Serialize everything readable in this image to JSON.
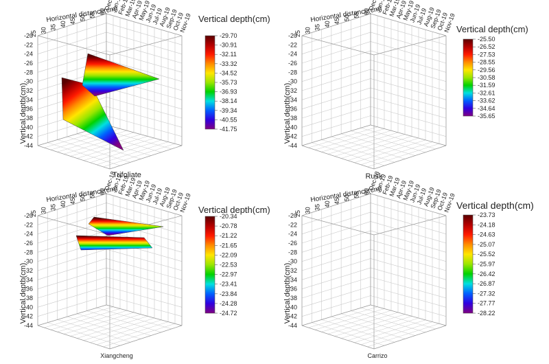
{
  "chart_data": [
    {
      "type": "surface3d",
      "name": "Trifoliate",
      "x_axis_title": "Horizontal distance(cm)",
      "x_ticks": [
        "25",
        "30",
        "35",
        "40",
        "45",
        "50",
        "55",
        "60"
      ],
      "time_ticks": [
        "Dec-18",
        "Jan-19",
        "Feb-19",
        "Mar-19",
        "Apr-19",
        "May-19",
        "Jun-19",
        "Jul-19",
        "Aug-19",
        "Sep-19",
        "Oct-19",
        "Nov-19"
      ],
      "z_axis_title": "Vertical depth(cm)",
      "z_ticks": [
        "-20",
        "-22",
        "-24",
        "-26",
        "-28",
        "-30",
        "-32",
        "-34",
        "-36",
        "-38",
        "-40",
        "-42",
        "-44"
      ],
      "zlim": [
        -44,
        -20
      ],
      "legend_title": "Vertical depth(cm)",
      "legend_values": [
        "-29.70",
        "-30.91",
        "-32.11",
        "-33.32",
        "-34.52",
        "-35.73",
        "-36.93",
        "-38.14",
        "-39.34",
        "-40.55",
        "-41.75"
      ],
      "depth_range": [
        -41.75,
        -29.7
      ]
    },
    {
      "type": "surface3d",
      "name": "Rusk",
      "x_axis_title": "Horizontal distance(cm)",
      "x_ticks": [
        "25",
        "30",
        "35",
        "40",
        "45",
        "50",
        "55",
        "60"
      ],
      "time_ticks": [
        "Dec-18",
        "Jan-19",
        "Feb-19",
        "Mar-19",
        "Apr-19",
        "May-19",
        "Jun-19",
        "Jul-19",
        "Aug-19",
        "Sep-19",
        "Oct-19",
        "Nov-19"
      ],
      "z_axis_title": "Vertical depth(cm)",
      "z_ticks": [
        "-20",
        "-22",
        "-24",
        "-26",
        "-28",
        "-30",
        "-32",
        "-34",
        "-36",
        "-38",
        "-40",
        "-42",
        "-44"
      ],
      "zlim": [
        -44,
        -20
      ],
      "legend_title": "Vertical depth(cm)",
      "legend_values": [
        "-25.50",
        "-26.52",
        "-27.53",
        "-28.55",
        "-29.56",
        "-30.58",
        "-31.59",
        "-32.61",
        "-33.62",
        "-34.64",
        "-35.65"
      ],
      "depth_range": [
        -35.65,
        -25.5
      ]
    },
    {
      "type": "surface3d",
      "name": "Xiangcheng",
      "x_axis_title": "Horizontal distance(cm)",
      "x_ticks": [
        "25",
        "30",
        "35",
        "40",
        "45",
        "50",
        "55",
        "60"
      ],
      "time_ticks": [
        "Dec-18",
        "Jan-19",
        "Feb-19",
        "Mar-19",
        "Apr-19",
        "May-19",
        "Jun-19",
        "Jul-19",
        "Aug-19",
        "Sep-19",
        "Oct-19",
        "Nov-19"
      ],
      "z_axis_title": "Vertical depth(cm)",
      "z_ticks": [
        "-20",
        "-22",
        "-24",
        "-26",
        "-28",
        "-30",
        "-32",
        "-34",
        "-36",
        "-38",
        "-40",
        "-42",
        "-44"
      ],
      "zlim": [
        -44,
        -20
      ],
      "legend_title": "Vertical depth(cm)",
      "legend_values": [
        "-20.34",
        "-20.78",
        "-21.22",
        "-21.65",
        "-22.09",
        "-22.53",
        "-22.97",
        "-23.41",
        "-23.84",
        "-24.28",
        "-24.72"
      ],
      "depth_range": [
        -24.72,
        -20.34
      ]
    },
    {
      "type": "surface3d",
      "name": "Carrizo",
      "x_axis_title": "Horizontal distance(cm)",
      "x_ticks": [
        "25",
        "30",
        "35",
        "40",
        "45",
        "50",
        "55",
        "60"
      ],
      "time_ticks": [
        "Dec-18",
        "Jan-19",
        "Feb-19",
        "Mar-19",
        "Apr-19",
        "May-19",
        "Jun-19",
        "Jul-19",
        "Aug-19",
        "Sep-19",
        "Oct-19",
        "Nov-19"
      ],
      "z_axis_title": "Vertical depth(cm)",
      "z_ticks": [
        "-20",
        "-22",
        "-24",
        "-26",
        "-28",
        "-30",
        "-32",
        "-34",
        "-36",
        "-38",
        "-40",
        "-42",
        "-44"
      ],
      "zlim": [
        -44,
        -20
      ],
      "legend_title": "Vertical depth(cm)",
      "legend_values": [
        "-23.73",
        "-24.18",
        "-24.63",
        "-25.07",
        "-25.52",
        "-25.97",
        "-26.42",
        "-26.87",
        "-27.32",
        "-27.77",
        "-28.22"
      ],
      "depth_range": [
        -28.22,
        -23.73
      ]
    }
  ],
  "colors": {
    "colormap": [
      "#5a0000",
      "#b40000",
      "#ff1a00",
      "#ff8c00",
      "#ffe600",
      "#9be600",
      "#00d200",
      "#00e0e0",
      "#0060ff",
      "#3000e0",
      "#800080"
    ],
    "grid": "#c8c8c8",
    "axis": "#333333"
  }
}
